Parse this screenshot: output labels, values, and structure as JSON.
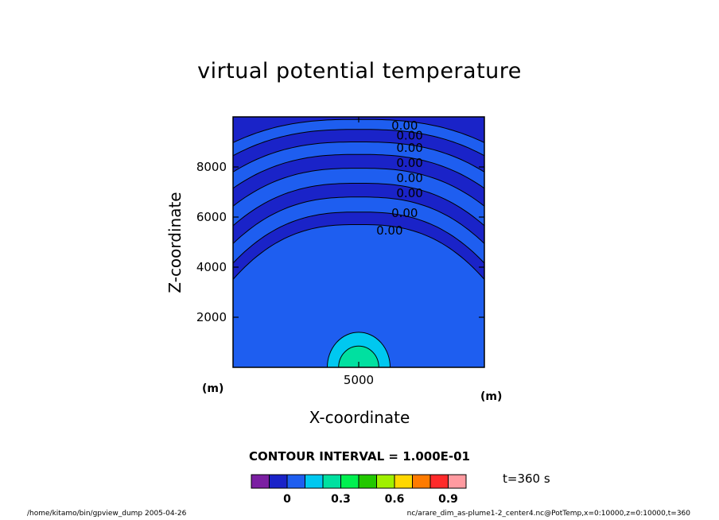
{
  "chart_data": {
    "type": "contour",
    "title": "virtual potential temperature",
    "xlabel": "X-coordinate",
    "ylabel": "Z-coordinate",
    "xunit": "(m)",
    "yunit": "(m)",
    "xlim": [
      0,
      10000
    ],
    "ylim": [
      0,
      10000
    ],
    "x_ticks": [
      5000
    ],
    "y_ticks": [
      2000,
      4000,
      6000,
      8000
    ],
    "contour_interval_text": "CONTOUR INTERVAL = 1.000E-01",
    "contour_line_labels": [
      "0.00",
      "0.00",
      "0.00",
      "0.00",
      "0.00",
      "0.00",
      "0.00",
      "0.00"
    ],
    "band_z_boundaries": [
      5700,
      6200,
      6800,
      7350,
      7950,
      8500,
      9000,
      9500,
      9900
    ],
    "plume": {
      "x_center": 5000,
      "contours": [
        {
          "level": 0.1,
          "half_width": 1250,
          "top": 1400
        },
        {
          "level": 0.2,
          "half_width": 800,
          "top": 850
        }
      ]
    },
    "colorbar": {
      "colors": [
        "#7b1fa2",
        "#1a23c8",
        "#1e5ef0",
        "#00c8f0",
        "#00e0a0",
        "#00f050",
        "#22c800",
        "#a0f000",
        "#ffd700",
        "#ff7b00",
        "#ff2a2a",
        "#ff9aa0"
      ],
      "tick_labels": [
        "0",
        "0.3",
        "0.6",
        "0.9"
      ],
      "tick_values": [
        0,
        0.3,
        0.6,
        0.9
      ],
      "edges_start": -0.2,
      "edge_step": 0.1
    },
    "time_label": "t=360 s"
  },
  "footer": {
    "left": "/home/kitamo/bin/gpview_dump  2005-04-26",
    "right": "nc/arare_dim_as-plume1-2_center4.nc@PotTemp,x=0:10000,z=0:10000,t=360"
  },
  "colors": {
    "background_band": "#1e5ef0",
    "alt_band": "#1a23c8",
    "plume_outer": "#00c8f0",
    "plume_inner": "#00e0a0"
  }
}
